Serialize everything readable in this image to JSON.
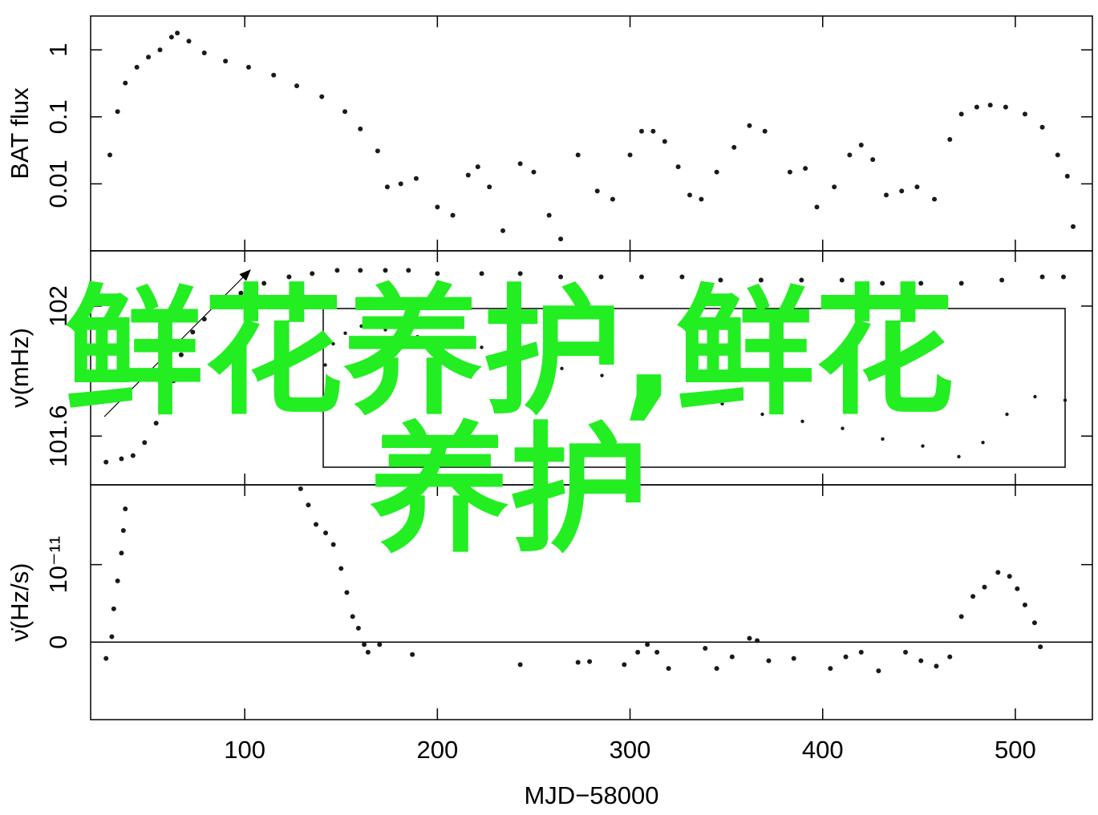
{
  "chart_data": [
    {
      "type": "scatter",
      "ylabel": "BAT flux",
      "log_y": true,
      "xlim": [
        20,
        540
      ],
      "ylim": [
        0.001,
        3.2
      ],
      "yticks": [
        0.01,
        0.1,
        1
      ],
      "x": [
        30,
        34,
        38,
        44,
        50,
        56,
        62,
        65,
        71,
        79,
        90,
        102,
        115,
        127,
        140,
        152,
        160,
        169,
        174,
        181,
        189,
        200,
        208,
        216,
        221,
        227,
        234,
        243,
        250,
        258,
        264,
        273,
        283,
        291,
        300,
        306,
        312,
        318,
        325,
        331,
        337,
        345,
        354,
        362,
        370,
        383,
        391,
        397,
        406,
        414,
        420,
        426,
        433,
        441,
        449,
        458,
        466,
        472,
        480,
        487,
        495,
        505,
        514,
        522,
        527,
        530
      ],
      "values": [
        0.027,
        0.12,
        0.32,
        0.55,
        0.78,
        1.0,
        1.55,
        1.78,
        1.35,
        0.9,
        0.68,
        0.55,
        0.42,
        0.29,
        0.2,
        0.12,
        0.066,
        0.031,
        0.009,
        0.01,
        0.012,
        0.0045,
        0.0034,
        0.0135,
        0.018,
        0.009,
        0.002,
        0.02,
        0.015,
        0.0034,
        0.0015,
        0.027,
        0.0078,
        0.0059,
        0.027,
        0.061,
        0.061,
        0.043,
        0.018,
        0.0068,
        0.0059,
        0.015,
        0.035,
        0.074,
        0.061,
        0.015,
        0.017,
        0.0045,
        0.009,
        0.027,
        0.038,
        0.023,
        0.0068,
        0.0078,
        0.009,
        0.0059,
        0.046,
        0.11,
        0.14,
        0.15,
        0.14,
        0.11,
        0.07,
        0.027,
        0.013,
        0.0023
      ]
    },
    {
      "type": "scatter",
      "ylabel": "ν(mHz)",
      "xlim": [
        20,
        540
      ],
      "ylim": [
        101.45,
        102.17
      ],
      "yticks": [
        101.6,
        102
      ],
      "x": [
        28,
        36,
        42,
        48,
        54,
        58,
        63,
        67,
        73,
        79,
        88,
        98,
        110,
        123,
        135,
        148,
        160,
        173,
        185,
        200,
        223,
        243,
        264,
        285,
        306,
        327,
        347,
        368,
        389,
        410,
        431,
        451,
        472,
        493,
        514,
        525
      ],
      "values": [
        101.52,
        101.53,
        101.54,
        101.58,
        101.64,
        101.7,
        101.77,
        101.85,
        101.92,
        101.96,
        102.01,
        102.04,
        102.07,
        102.09,
        102.1,
        102.11,
        102.11,
        102.11,
        102.11,
        102.1,
        102.1,
        102.1,
        102.09,
        102.09,
        102.09,
        102.09,
        102.08,
        102.08,
        102.08,
        102.08,
        102.07,
        102.07,
        102.07,
        102.08,
        102.09,
        102.09
      ]
    },
    {
      "type": "scatter",
      "inset": true,
      "xlim": [
        160,
        530
      ],
      "ylim": [
        102.07,
        102.115
      ],
      "x": [
        161,
        165,
        171,
        179,
        191,
        207,
        223,
        239,
        259,
        279,
        299,
        319,
        339,
        359,
        379,
        399,
        419,
        439,
        459,
        477,
        489,
        501,
        515,
        530
      ],
      "values": [
        102.099,
        102.105,
        102.108,
        102.11,
        102.109,
        102.107,
        102.106,
        102.104,
        102.101,
        102.098,
        102.096,
        102.093,
        102.09,
        102.088,
        102.085,
        102.083,
        102.081,
        102.078,
        102.076,
        102.073,
        102.077,
        102.085,
        102.09,
        102.089
      ]
    },
    {
      "type": "scatter",
      "ylabel": "ν̇(Hz/s)",
      "xlabel": "MJD−58000",
      "zero_line": true,
      "xlim": [
        20,
        540
      ],
      "ylim": [
        -1e-11,
        2.03e-11
      ],
      "xticks": [
        100,
        200,
        300,
        400,
        500
      ],
      "yticks": [
        0,
        {
          "value": 1e-11,
          "label": "10⁻¹¹"
        }
      ],
      "x": [
        28,
        31,
        32,
        34,
        36,
        37,
        38,
        129,
        133,
        137,
        142,
        146,
        150,
        153,
        156,
        159,
        162,
        164,
        170,
        187,
        243,
        273,
        279,
        297,
        304,
        309,
        314,
        320,
        339,
        345,
        353,
        362,
        366,
        372,
        385,
        404,
        412,
        420,
        429,
        443,
        451,
        459,
        466,
        472,
        478,
        484,
        491,
        497,
        501,
        505,
        510,
        513
      ],
      "values": [
        -2.1e-12,
        7e-13,
        4.3e-12,
        7.9e-12,
        1.15e-11,
        1.44e-11,
        1.72e-11,
        1.98e-11,
        1.77e-11,
        1.52e-11,
        1.41e-11,
        1.26e-11,
        9.5e-12,
        6.4e-12,
        3.3e-12,
        1.8e-12,
        -3e-13,
        -1.3e-12,
        -3e-13,
        -1.6e-12,
        -2.9e-12,
        -2.6e-12,
        -2.5e-12,
        -2.9e-12,
        -1.3e-12,
        -3e-13,
        -1.3e-12,
        -3.4e-12,
        -8e-13,
        -3.4e-12,
        -1.9e-12,
        5e-13,
        2e-13,
        -2.4e-12,
        -2.1e-12,
        -3.4e-12,
        -1.9e-12,
        -1.3e-12,
        -3.7e-12,
        -1.3e-12,
        -2.4e-12,
        -3.1e-12,
        -1.9e-12,
        3.3e-12,
        5.9e-12,
        7.1e-12,
        9e-12,
        8.5e-12,
        6.9e-12,
        4.8e-12,
        2.5e-12,
        -6e-13
      ]
    }
  ],
  "overlay_text": "鲜花养护,鲜花养护"
}
